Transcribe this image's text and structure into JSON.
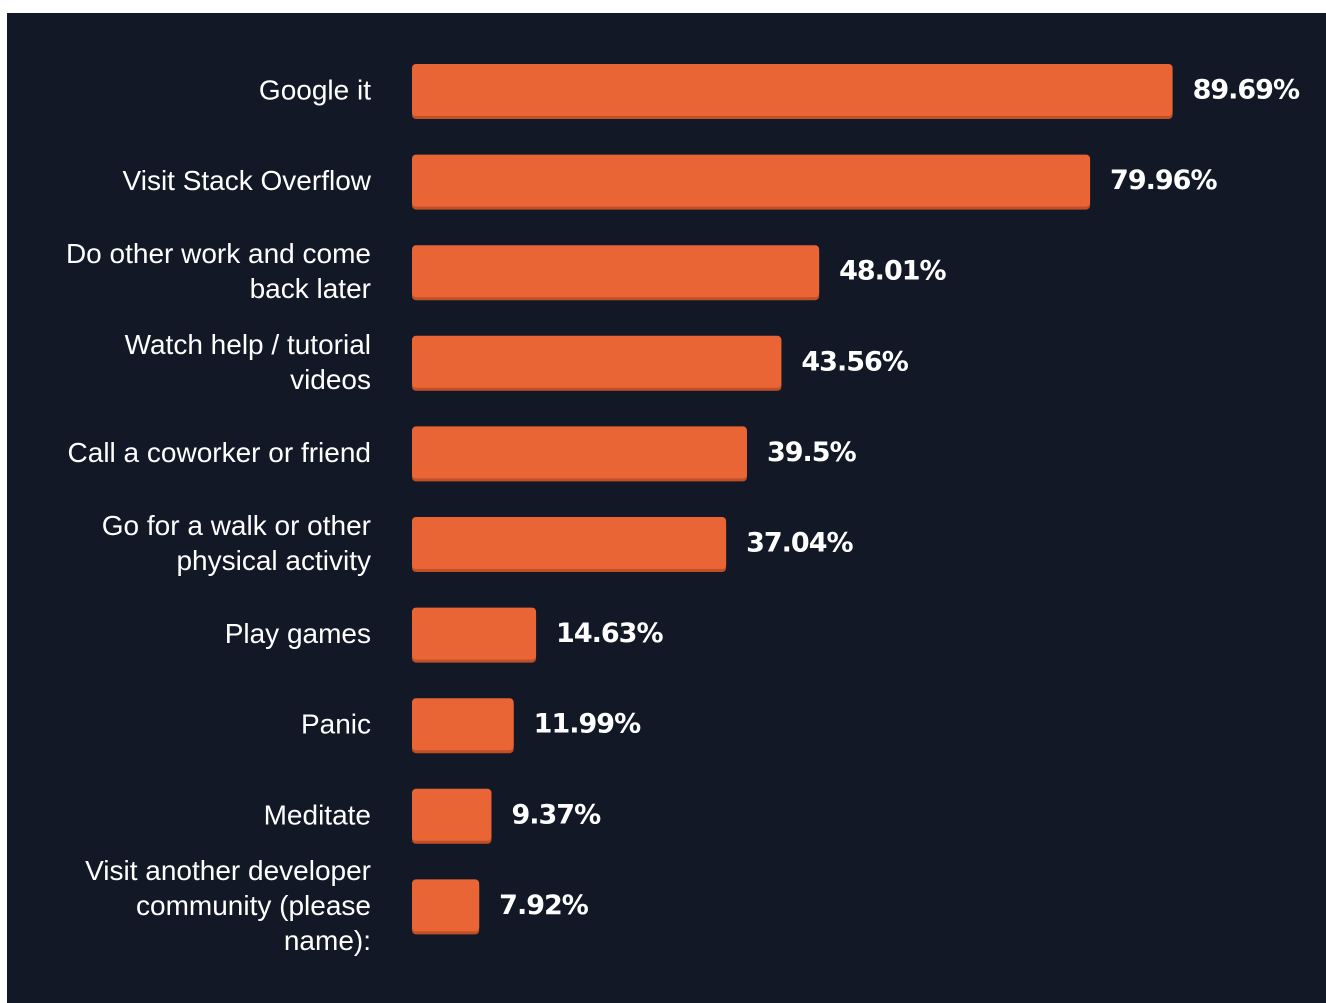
{
  "colors": {
    "background": "#131827",
    "bar": "#ea6535",
    "bar_shadow": "#bf4f26",
    "label_text": "#ffffff",
    "value_text": "#ffffff"
  },
  "chart_data": {
    "type": "bar",
    "orientation": "horizontal",
    "title": "",
    "xlabel": "",
    "ylabel": "",
    "xlim": [
      0,
      100
    ],
    "grid": false,
    "legend": "none",
    "categories": [
      "Google it",
      "Visit Stack Overflow",
      "Do other work and come back later",
      "Watch help / tutorial videos",
      "Call a coworker or friend",
      "Go for a walk or other physical activity",
      "Play games",
      "Panic",
      "Meditate",
      "Visit another developer community (please name):"
    ],
    "category_lines": [
      [
        "Google it"
      ],
      [
        "Visit Stack Overflow"
      ],
      [
        "Do other work and come",
        "back later"
      ],
      [
        "Watch help / tutorial",
        "videos"
      ],
      [
        "Call a coworker or friend"
      ],
      [
        "Go for a walk or other",
        "physical activity"
      ],
      [
        "Play games"
      ],
      [
        "Panic"
      ],
      [
        "Meditate"
      ],
      [
        "Visit another developer",
        "community (please",
        "name):"
      ]
    ],
    "values": [
      89.69,
      79.96,
      48.01,
      43.56,
      39.5,
      37.04,
      14.63,
      11.99,
      9.37,
      7.92
    ],
    "value_labels": [
      "89.69%",
      "79.96%",
      "48.01%",
      "43.56%",
      "39.5%",
      "37.04%",
      "14.63%",
      "11.99%",
      "9.37%",
      "7.92%"
    ]
  }
}
